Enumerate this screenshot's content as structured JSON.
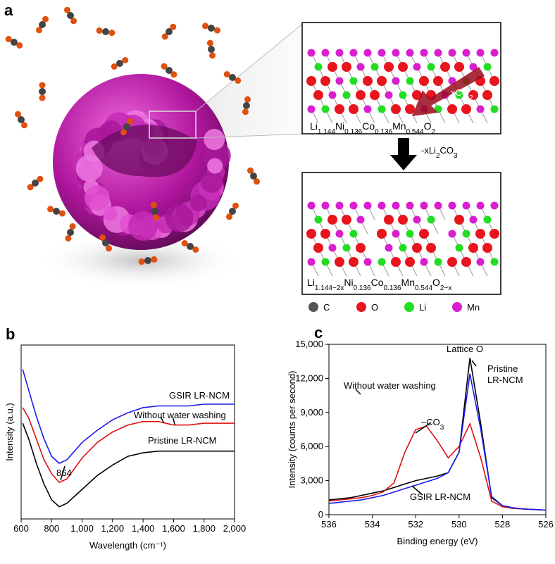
{
  "panel_a": {
    "label": "a",
    "co2_label": [
      "xCO",
      "2"
    ],
    "removal_label": [
      "-xLi",
      "2",
      "CO",
      "3"
    ],
    "top_formula": [
      "Li",
      "1.144",
      "Ni",
      "0.136",
      "Co",
      "0.136",
      "Mn",
      "0.544",
      "O",
      "2"
    ],
    "bottom_formula": [
      "Li",
      "1.144−2x",
      "Ni",
      "0.136",
      "Co",
      "0.136",
      "Mn",
      "0.544",
      "O",
      "2−x"
    ],
    "legend": [
      {
        "name": "C",
        "color": "#555555"
      },
      {
        "name": "O",
        "color": "#e8141e"
      },
      {
        "name": "Li",
        "color": "#22dd22"
      },
      {
        "name": "Mn",
        "color": "#d81ecf"
      }
    ]
  },
  "chart_data": [
    {
      "type": "line",
      "panel_label": "b",
      "x_label": "Wavelength (cm⁻¹)",
      "y_label": "Intensity (a.u.)",
      "x": [
        610,
        650,
        700,
        750,
        800,
        850,
        900,
        950,
        1000,
        1100,
        1200,
        1300,
        1400,
        1500,
        1600,
        1700,
        1800,
        1900,
        2000
      ],
      "xlim": [
        600,
        2000
      ],
      "xticks": [
        600,
        800,
        {
          "value": 1000,
          "label": "1,000"
        },
        {
          "value": 1200,
          "label": "1,200"
        },
        {
          "value": 1400,
          "label": "1,400"
        },
        {
          "value": 1600,
          "label": "1,600"
        },
        {
          "value": 1800,
          "label": "1,800"
        },
        {
          "value": 2000,
          "label": "2,000"
        }
      ],
      "ylim": [
        0,
        10
      ],
      "series": [
        {
          "name": "GSIR LR-NCM",
          "color": "#1a1aee",
          "values": [
            8.6,
            7.4,
            5.9,
            4.6,
            3.6,
            3.2,
            3.4,
            3.9,
            4.4,
            5.1,
            5.7,
            6.1,
            6.4,
            6.5,
            6.5,
            6.5,
            6.6,
            6.6,
            6.6
          ]
        },
        {
          "name": "Without water washing",
          "color": "#e01010",
          "values": [
            6.4,
            5.8,
            4.6,
            3.4,
            2.6,
            2.1,
            2.3,
            2.9,
            3.5,
            4.4,
            5.0,
            5.4,
            5.6,
            5.6,
            5.4,
            5.4,
            5.5,
            5.5,
            5.5
          ]
        },
        {
          "name": "Pristine LR-NCM",
          "color": "#000000",
          "values": [
            5.5,
            4.6,
            3.2,
            2.0,
            1.1,
            0.7,
            0.9,
            1.3,
            1.7,
            2.5,
            3.1,
            3.6,
            3.8,
            3.9,
            3.9,
            3.9,
            3.9,
            3.9,
            3.9
          ]
        }
      ],
      "annotations": [
        [
          "864"
        ]
      ]
    },
    {
      "type": "line",
      "panel_label": "c",
      "x_label": "Binding energy (eV)",
      "y_label": "Intensity (counts per second)",
      "x": [
        536,
        535.5,
        535,
        534.5,
        534,
        533.5,
        533,
        532.5,
        532,
        531.5,
        531,
        530.5,
        530,
        529.5,
        529,
        528.5,
        528,
        527.5,
        527,
        526.5,
        526
      ],
      "xlim": [
        536,
        526
      ],
      "xticks": [
        536,
        534,
        532,
        530,
        528,
        526
      ],
      "ylim": [
        0,
        15000
      ],
      "yticks": [
        0,
        {
          "value": 3000,
          "label": "3,000"
        },
        {
          "value": 6000,
          "label": "6,000"
        },
        {
          "value": 9000,
          "label": "9,000"
        },
        {
          "value": 12000,
          "label": "12,000"
        },
        {
          "value": 15000,
          "label": "15,000"
        }
      ],
      "series": [
        {
          "name": "Pristine LR-NCM",
          "color": "#000000",
          "values": [
            1300,
            1400,
            1500,
            1700,
            1900,
            2100,
            2400,
            2700,
            3000,
            3200,
            3400,
            3700,
            5500,
            13800,
            8000,
            1500,
            800,
            600,
            500,
            450,
            400
          ]
        },
        {
          "name": "Without water washing",
          "color": "#e01010",
          "values": [
            1200,
            1300,
            1400,
            1500,
            1700,
            2000,
            2800,
            5500,
            7500,
            7800,
            6500,
            5000,
            6000,
            8000,
            5000,
            1200,
            700,
            550,
            500,
            450,
            400
          ]
        },
        {
          "name": "GSIR LR-NCM",
          "color": "#1a1aee",
          "values": [
            1000,
            1100,
            1200,
            1300,
            1500,
            1700,
            2000,
            2300,
            2600,
            2900,
            3200,
            3700,
            5500,
            12400,
            7500,
            1600,
            800,
            600,
            500,
            450,
            400
          ]
        }
      ],
      "annotations": [
        [
          "Lattice O"
        ],
        [
          "–CO",
          "3"
        ]
      ]
    }
  ]
}
